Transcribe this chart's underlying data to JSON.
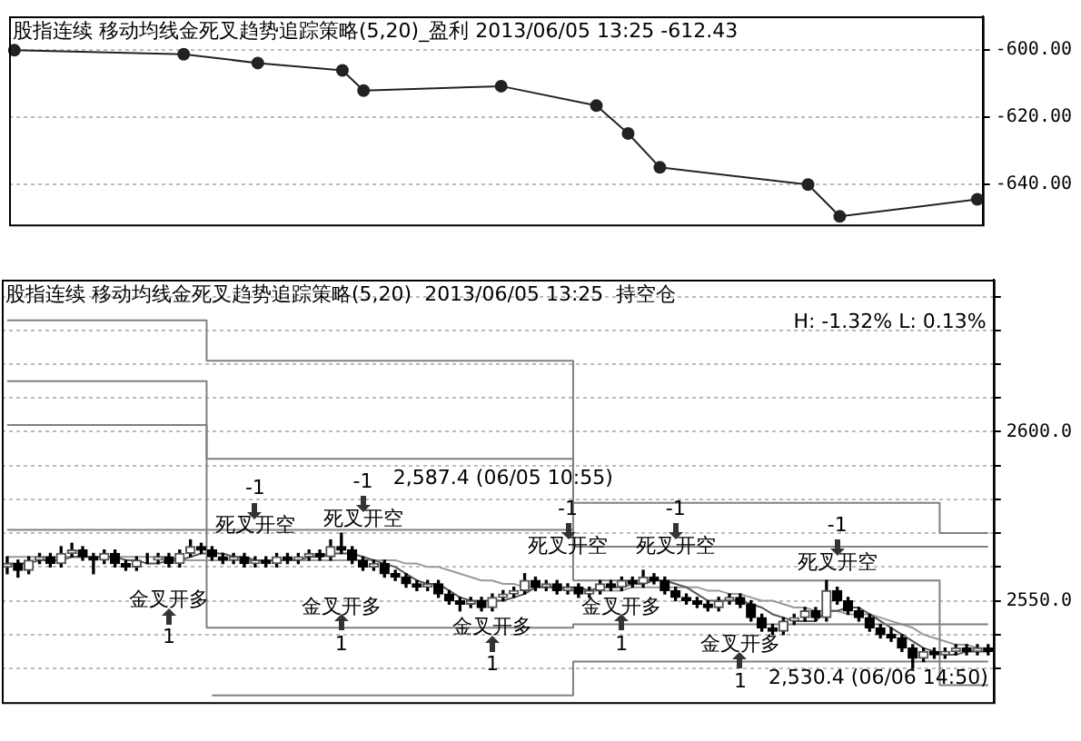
{
  "chart_data": [
    {
      "type": "line",
      "title": "股指连续 移动均线金死叉趋势追踪策略(5,20)_盈利 2013/06/05 13:25 -612.43",
      "categories": [
        null,
        null,
        null,
        null,
        null,
        null,
        null,
        null,
        null,
        null,
        null,
        null,
        null,
        null,
        null,
        null,
        null,
        null,
        null,
        null,
        null,
        null,
        null,
        null,
        null,
        null,
        null,
        null,
        null,
        null,
        null,
        null,
        null,
        null,
        null,
        null,
        null,
        null,
        null,
        null,
        null,
        null,
        null,
        null,
        null,
        null,
        null,
        null,
        null,
        null,
        null,
        null,
        null,
        null,
        null,
        null,
        null,
        null,
        null,
        null,
        null,
        null,
        null,
        null,
        null,
        null,
        null,
        null,
        null,
        null,
        null,
        null,
        null,
        null,
        null,
        null,
        null,
        null,
        null,
        null,
        null,
        null,
        null,
        null,
        null,
        null,
        null,
        null,
        null,
        null,
        null,
        null
      ],
      "values": [
        -600.1,
        null,
        null,
        null,
        null,
        null,
        null,
        null,
        null,
        null,
        null,
        null,
        null,
        null,
        null,
        null,
        -601.3,
        null,
        null,
        null,
        null,
        null,
        null,
        -603.9,
        null,
        null,
        null,
        null,
        null,
        null,
        null,
        -606.1,
        null,
        -612.1,
        null,
        null,
        null,
        null,
        null,
        null,
        null,
        null,
        null,
        null,
        null,
        null,
        -610.8,
        null,
        null,
        null,
        null,
        null,
        null,
        null,
        null,
        -616.6,
        null,
        null,
        -624.9,
        null,
        null,
        -635,
        null,
        null,
        null,
        null,
        null,
        null,
        null,
        null,
        null,
        null,
        null,
        null,
        null,
        -640.1,
        null,
        null,
        -649.6,
        null,
        null,
        null,
        null,
        null,
        null,
        null,
        null,
        null,
        null,
        null,
        null,
        -644.5
      ],
      "color": "#222222",
      "marker": "circle",
      "ylim": [
        -652,
        -590
      ],
      "yticks": [
        {
          "value": -600,
          "label": "-600.00"
        },
        {
          "value": -620,
          "label": "-620.00"
        },
        {
          "value": -640,
          "label": "-640.00"
        }
      ],
      "grid": "y"
    },
    {
      "type": "candlestick",
      "title": "股指连续 移动均线金死叉趋势追踪策略(5,20)  2013/06/05 13:25  持空仓",
      "categories": [
        null,
        null,
        null,
        null,
        null,
        null,
        null,
        null,
        null,
        null,
        null,
        null,
        null,
        null,
        null,
        null,
        null,
        null,
        null,
        null,
        null,
        null,
        null,
        null,
        null,
        null,
        null,
        null,
        null,
        null,
        null,
        null,
        null,
        null,
        null,
        null,
        null,
        null,
        null,
        null,
        null,
        null,
        null,
        null,
        null,
        null,
        null,
        null,
        null,
        null,
        null,
        null,
        null,
        null,
        null,
        null,
        null,
        null,
        null,
        null,
        null,
        null,
        null,
        null,
        null,
        null,
        null,
        null,
        null,
        null,
        null,
        null,
        null,
        null,
        null,
        null,
        null,
        null,
        null,
        null,
        null,
        null,
        null,
        null,
        null,
        null,
        null,
        null,
        null,
        null,
        null,
        null
      ],
      "ohlc": [
        [
          2560,
          2563,
          2558,
          2561
        ],
        [
          2561,
          2562,
          2557,
          2559
        ],
        [
          2559,
          2563,
          2558,
          2562
        ],
        [
          2562,
          2564,
          2561,
          2563
        ],
        [
          2563,
          2564,
          2560,
          2561
        ],
        [
          2561,
          2566,
          2560,
          2564
        ],
        [
          2564,
          2567,
          2563,
          2565
        ],
        [
          2565,
          2566,
          2562,
          2563
        ],
        [
          2563,
          2564,
          2558,
          2562
        ],
        [
          2562,
          2565,
          2561,
          2564
        ],
        [
          2564,
          2565,
          2560,
          2561
        ],
        [
          2561,
          2562,
          2559,
          2560
        ],
        [
          2560,
          2563,
          2559,
          2562
        ],
        [
          2562,
          2564,
          2561,
          2562
        ],
        [
          2562,
          2564,
          2561,
          2563
        ],
        [
          2563,
          2564,
          2560,
          2561
        ],
        [
          2561,
          2565,
          2560,
          2564
        ],
        [
          2564,
          2568,
          2563,
          2566
        ],
        [
          2566,
          2567,
          2564,
          2565
        ],
        [
          2565,
          2566,
          2562,
          2563
        ],
        [
          2563,
          2564,
          2561,
          2562
        ],
        [
          2562,
          2564,
          2561,
          2563
        ],
        [
          2563,
          2564,
          2560,
          2561
        ],
        [
          2561,
          2563,
          2560,
          2562
        ],
        [
          2562,
          2563,
          2560,
          2561
        ],
        [
          2561,
          2564,
          2560,
          2563
        ],
        [
          2563,
          2564,
          2561,
          2562
        ],
        [
          2562,
          2564,
          2561,
          2563
        ],
        [
          2563,
          2565,
          2562,
          2564
        ],
        [
          2564,
          2565,
          2562,
          2563
        ],
        [
          2563,
          2568,
          2562,
          2566
        ],
        [
          2566,
          2570,
          2564,
          2565
        ],
        [
          2565,
          2566,
          2561,
          2562
        ],
        [
          2562,
          2563,
          2559,
          2560
        ],
        [
          2560,
          2562,
          2559,
          2561
        ],
        [
          2561,
          2562,
          2557,
          2558
        ],
        [
          2558,
          2559,
          2556,
          2557
        ],
        [
          2557,
          2558,
          2554,
          2555
        ],
        [
          2555,
          2556,
          2553,
          2554
        ],
        [
          2554,
          2556,
          2553,
          2555
        ],
        [
          2555,
          2556,
          2551,
          2552
        ],
        [
          2552,
          2553,
          2549,
          2550
        ],
        [
          2550,
          2551,
          2547,
          2549
        ],
        [
          2549,
          2551,
          2548,
          2550
        ],
        [
          2550,
          2551,
          2547,
          2548
        ],
        [
          2548,
          2552,
          2547,
          2551
        ],
        [
          2551,
          2553,
          2550,
          2552
        ],
        [
          2552,
          2554,
          2551,
          2553
        ],
        [
          2553,
          2558,
          2552,
          2556
        ],
        [
          2556,
          2557,
          2553,
          2554
        ],
        [
          2554,
          2556,
          2553,
          2555
        ],
        [
          2555,
          2556,
          2552,
          2553
        ],
        [
          2553,
          2555,
          2552,
          2554
        ],
        [
          2554,
          2555,
          2551,
          2552
        ],
        [
          2552,
          2554,
          2551,
          2553
        ],
        [
          2553,
          2556,
          2552,
          2555
        ],
        [
          2555,
          2556,
          2553,
          2554
        ],
        [
          2554,
          2557,
          2553,
          2556
        ],
        [
          2556,
          2557,
          2554,
          2555
        ],
        [
          2555,
          2559,
          2554,
          2557
        ],
        [
          2557,
          2558,
          2555,
          2556
        ],
        [
          2556,
          2557,
          2552,
          2553
        ],
        [
          2553,
          2554,
          2550,
          2551
        ],
        [
          2551,
          2552,
          2549,
          2550
        ],
        [
          2550,
          2551,
          2548,
          2549
        ],
        [
          2549,
          2550,
          2547,
          2548
        ],
        [
          2548,
          2551,
          2547,
          2550
        ],
        [
          2550,
          2552,
          2549,
          2551
        ],
        [
          2551,
          2552,
          2548,
          2549
        ],
        [
          2549,
          2550,
          2544,
          2545
        ],
        [
          2545,
          2546,
          2541,
          2542
        ],
        [
          2542,
          2543,
          2540,
          2541
        ],
        [
          2541,
          2545,
          2540,
          2544
        ],
        [
          2544,
          2546,
          2543,
          2545
        ],
        [
          2545,
          2548,
          2544,
          2547
        ],
        [
          2547,
          2548,
          2544,
          2545
        ],
        [
          2545,
          2556,
          2544,
          2553
        ],
        [
          2553,
          2554,
          2549,
          2550
        ],
        [
          2550,
          2551,
          2546,
          2547
        ],
        [
          2547,
          2548,
          2544,
          2545
        ],
        [
          2545,
          2546,
          2541,
          2542
        ],
        [
          2542,
          2543,
          2539,
          2540
        ],
        [
          2540,
          2542,
          2538,
          2539
        ],
        [
          2539,
          2540,
          2535,
          2536
        ],
        [
          2536,
          2537,
          2530,
          2533
        ],
        [
          2533,
          2536,
          2532,
          2535
        ],
        [
          2535,
          2536,
          2533,
          2534
        ],
        [
          2534,
          2536,
          2533,
          2535
        ],
        [
          2535,
          2537,
          2534,
          2536
        ],
        [
          2536,
          2537,
          2534,
          2535
        ],
        [
          2535,
          2537,
          2534,
          2536
        ],
        [
          2536,
          2537,
          2534,
          2535
        ]
      ],
      "series": [
        {
          "type": "step",
          "color": "#808080",
          "values": [
            2633,
            2633,
            2633,
            2633,
            2633,
            2633,
            2633,
            2633,
            2633,
            2633,
            2633,
            2633,
            2633,
            2633,
            2633,
            2633,
            2633,
            2633,
            2633,
            2621,
            2621,
            2621,
            2621,
            2621,
            2621,
            2621,
            2621,
            2621,
            2621,
            2621,
            2621,
            2621,
            2621,
            2621,
            2621,
            2621,
            2621,
            2621,
            2621,
            2621,
            2621,
            2621,
            2621,
            2621,
            2621,
            2621,
            2621,
            2621,
            2621,
            2621,
            2621,
            2621,
            2621,
            2579,
            2579,
            2579,
            2579,
            2579,
            2579,
            2579,
            2579,
            2579,
            2579,
            2579,
            2579,
            2579,
            2579,
            2579,
            2579,
            2579,
            2579,
            2579,
            2579,
            2579,
            2579,
            2579,
            2579,
            2579,
            2579,
            2579,
            2579,
            2579,
            2579,
            2579,
            2579,
            2579,
            2579,
            2570,
            2570,
            2570,
            2570,
            2570
          ]
        },
        {
          "type": "step",
          "color": "#808080",
          "values": [
            2615,
            2615,
            2615,
            2615,
            2615,
            2615,
            2615,
            2615,
            2615,
            2615,
            2615,
            2615,
            2615,
            2615,
            2615,
            2615,
            2615,
            2615,
            2615,
            2592,
            2592,
            2592,
            2592,
            2592,
            2592,
            2592,
            2592,
            2592,
            2592,
            2592,
            2592,
            2592,
            2592,
            2592,
            2592,
            2592,
            2592,
            2592,
            2592,
            2592,
            2592,
            2592,
            2592,
            2592,
            2592,
            2592,
            2592,
            2592,
            2592,
            2592,
            2592,
            2592,
            2592,
            2566,
            2566,
            2566,
            2566,
            2566,
            2566,
            2566,
            2566,
            2566,
            2566,
            2566,
            2566,
            2566,
            2566,
            2566,
            2566,
            2566,
            2566,
            2566,
            2566,
            2566,
            2566,
            2566,
            2566,
            2566,
            2566,
            2566,
            2566,
            2566,
            2566,
            2566,
            2566,
            2566,
            2566,
            2566,
            2566,
            2566,
            2566,
            2566
          ]
        },
        {
          "type": "step",
          "color": "#808080",
          "values": [
            2602,
            2602,
            2602,
            2602,
            2602,
            2602,
            2602,
            2602,
            2602,
            2602,
            2602,
            2602,
            2602,
            2602,
            2602,
            2602,
            2602,
            2602,
            2602,
            2571,
            2571,
            2571,
            2571,
            2571,
            2571,
            2571,
            2571,
            2571,
            2571,
            2571,
            2571,
            2571,
            2571,
            2571,
            2571,
            2571,
            2571,
            2571,
            2571,
            2571,
            2571,
            2571,
            2571,
            2571,
            2571,
            2571,
            2571,
            2571,
            2571,
            2571,
            2571,
            2571,
            2571,
            2556,
            2556,
            2556,
            2556,
            2556,
            2556,
            2556,
            2556,
            2556,
            2556,
            2556,
            2556,
            2556,
            2556,
            2556,
            2556,
            2556,
            2556,
            2556,
            2556,
            2556,
            2556,
            2556,
            2556,
            2556,
            2556,
            2556,
            2556,
            2556,
            2556,
            2556,
            2556,
            2556,
            2556,
            2525,
            2525,
            2525,
            2525,
            2525
          ]
        },
        {
          "type": "step",
          "color": "#808080",
          "values": [
            2571,
            2571,
            2571,
            2571,
            2571,
            2571,
            2571,
            2571,
            2571,
            2571,
            2571,
            2571,
            2571,
            2571,
            2571,
            2571,
            2571,
            2571,
            2571,
            2542,
            2542,
            2542,
            2542,
            2542,
            2542,
            2542,
            2542,
            2542,
            2542,
            2542,
            2542,
            2542,
            2542,
            2542,
            2542,
            2542,
            2542,
            2542,
            2542,
            2542,
            2542,
            2542,
            2542,
            2542,
            2542,
            2542,
            2542,
            2542,
            2542,
            2542,
            2542,
            2542,
            2542,
            2543,
            2543,
            2543,
            2543,
            2543,
            2543,
            2543,
            2543,
            2543,
            2543,
            2543,
            2543,
            2543,
            2543,
            2543,
            2543,
            2543,
            2543,
            2543,
            2543,
            2543,
            2543,
            2543,
            2543,
            2543,
            2543,
            2543,
            2543,
            2543,
            2543,
            2543,
            2543,
            2543,
            2543,
            2543,
            2543,
            2543,
            2543,
            2543
          ]
        },
        {
          "type": "step",
          "color": "#808080",
          "values": [
            null,
            null,
            null,
            null,
            null,
            null,
            null,
            null,
            null,
            null,
            null,
            null,
            null,
            null,
            null,
            null,
            null,
            null,
            null,
            2522,
            2522,
            2522,
            2522,
            2522,
            2522,
            2522,
            2522,
            2522,
            2522,
            2522,
            2522,
            2522,
            2522,
            2522,
            2522,
            2522,
            2522,
            2522,
            2522,
            2522,
            2522,
            2522,
            2522,
            2522,
            2522,
            2522,
            2522,
            2522,
            2522,
            2522,
            2522,
            2522,
            2522,
            2532,
            2532,
            2532,
            2532,
            2532,
            2532,
            2532,
            2532,
            2532,
            2532,
            2532,
            2532,
            2532,
            2532,
            2532,
            2532,
            2532,
            2532,
            2532,
            2532,
            2532,
            2532,
            2532,
            2532,
            2532,
            2532,
            2532,
            2532,
            2532,
            2532,
            2532,
            2532,
            2532,
            2532,
            2532,
            2532,
            2532,
            2532,
            2532
          ]
        },
        {
          "type": "line",
          "color": "#555555",
          "values": [
            2561,
            2561,
            2561,
            2562,
            2562,
            2562,
            2563,
            2563,
            2563,
            2563,
            2563,
            2562,
            2562,
            2561,
            2561,
            2562,
            2562,
            2563,
            2564,
            2564,
            2564,
            2563,
            2563,
            2562,
            2562,
            2562,
            2562,
            2562,
            2563,
            2563,
            2564,
            2564,
            2564,
            2563,
            2562,
            2561,
            2560,
            2558,
            2556,
            2555,
            2555,
            2553,
            2551,
            2550,
            2550,
            2550,
            2550,
            2551,
            2552,
            2554,
            2554,
            2554,
            2554,
            2554,
            2553,
            2554,
            2554,
            2554,
            2555,
            2555,
            2556,
            2556,
            2555,
            2554,
            2552,
            2550,
            2550,
            2550,
            2550,
            2549,
            2548,
            2546,
            2545,
            2544,
            2544,
            2544,
            2547,
            2547,
            2548,
            2548,
            2546,
            2544,
            2542,
            2540,
            2538,
            2536,
            2535,
            2534,
            2534,
            2535,
            2535,
            2535
          ]
        },
        {
          "type": "line",
          "color": "#999999",
          "values": [
            2563,
            2563,
            2563,
            2563,
            2563,
            2563,
            2563,
            2563,
            2563,
            2563,
            2563,
            2563,
            2563,
            2563,
            2563,
            2563,
            2562,
            2562,
            2562,
            2562,
            2562,
            2562,
            2562,
            2562,
            2562,
            2562,
            2562,
            2562,
            2562,
            2562,
            2562,
            2562,
            2562,
            2562,
            2562,
            2562,
            2562,
            2561,
            2561,
            2560,
            2560,
            2559,
            2558,
            2557,
            2556,
            2556,
            2555,
            2555,
            2554,
            2554,
            2554,
            2554,
            2553,
            2553,
            2553,
            2553,
            2553,
            2553,
            2554,
            2554,
            2554,
            2554,
            2554,
            2554,
            2554,
            2553,
            2553,
            2552,
            2552,
            2551,
            2550,
            2550,
            2549,
            2548,
            2548,
            2547,
            2547,
            2547,
            2546,
            2546,
            2546,
            2545,
            2544,
            2543,
            2542,
            2540,
            2539,
            2538,
            2537,
            2537,
            2536,
            2536
          ]
        }
      ],
      "ylim": [
        2520,
        2645
      ],
      "yticks": [
        {
          "value": 2530,
          "label": null
        },
        {
          "value": 2540,
          "label": null
        },
        {
          "value": 2550,
          "label": "2550.0"
        },
        {
          "value": 2560,
          "label": null
        },
        {
          "value": 2570,
          "label": null
        },
        {
          "value": 2580,
          "label": null
        },
        {
          "value": 2590,
          "label": null
        },
        {
          "value": 2600,
          "label": "2600.0"
        },
        {
          "value": 2610,
          "label": null
        },
        {
          "value": 2620,
          "label": null
        },
        {
          "value": 2630,
          "label": null
        },
        {
          "value": 2640,
          "label": null
        }
      ],
      "grid": "y",
      "annotations": [
        "H: -1.32% L: 0.13%",
        "金叉开多",
        "1",
        "死叉开空",
        "-1",
        "死叉开空",
        "-1",
        "金叉开多",
        "1",
        "金叉开多",
        "1",
        "死叉开空",
        "-1",
        "死叉开空",
        "-1",
        "金叉开多",
        "1",
        "死叉开空",
        "-1",
        "金叉开多",
        "1",
        "2,587.4 (06/05 10:55)",
        "2,530.4 (06/06 14:50)"
      ]
    }
  ]
}
